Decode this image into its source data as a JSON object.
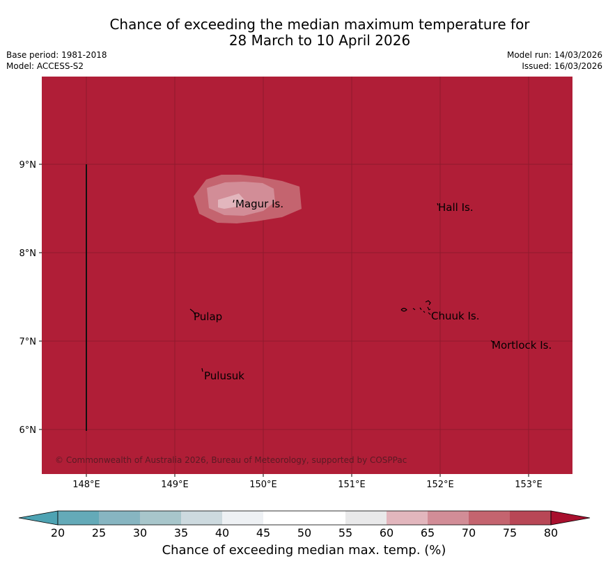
{
  "title": {
    "line1": "Chance of exceeding the median maximum temperature for",
    "line2": "28 March to 10 April 2026"
  },
  "meta_left": {
    "base_period": "Base period: 1981-2018",
    "model": "Model: ACCESS-S2"
  },
  "meta_right": {
    "model_run": "Model run: 14/03/2026",
    "issued": "Issued: 16/03/2026"
  },
  "map": {
    "lat_labels": [
      "9°N",
      "8°N",
      "7°N",
      "6°N"
    ],
    "lon_labels": [
      "148°E",
      "149°E",
      "150°E",
      "151°E",
      "152°E",
      "153°E"
    ],
    "places": [
      "Magur Is.",
      "Hall Is.",
      "Pulap",
      "Chuuk Is.",
      "Mortlock Is.",
      "Pulusuk"
    ],
    "copyright": "© Commonwealth of Australia 2026, Bureau of Meteorology, supported by COSPPac",
    "background_color": "#b01e37"
  },
  "colorbar": {
    "label": "Chance of exceeding median max. temp. (%)",
    "ticks": [
      "20",
      "25",
      "30",
      "35",
      "40",
      "45",
      "50",
      "55",
      "60",
      "65",
      "70",
      "75",
      "80"
    ],
    "colors": [
      "#64aab8",
      "#87b5c1",
      "#a8c6cb",
      "#cddadf",
      "#eef1f4",
      "#ffffff",
      "#ffffff",
      "#e9e9ea",
      "#e2b6bd",
      "#d28d97",
      "#c4646f",
      "#b84756"
    ],
    "low_arrow_color": "#4ea3b3",
    "high_arrow_color": "#a8102e"
  }
}
